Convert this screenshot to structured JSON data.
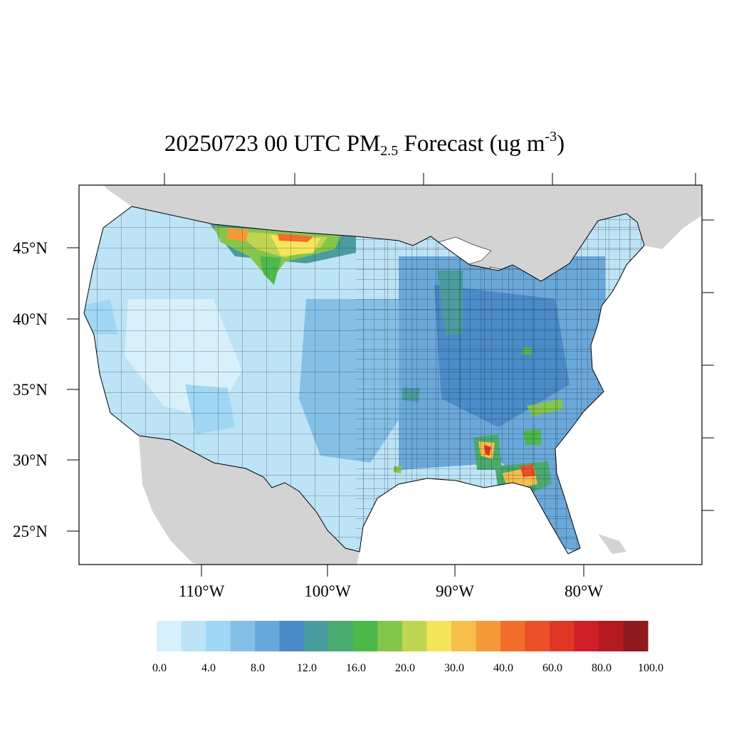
{
  "title": {
    "prefix": "20250723 00 UTC PM",
    "subscript": "2.5",
    "middle": " Forecast (ug m",
    "superscript": "-3",
    "suffix": ")"
  },
  "axes": {
    "lat_labels": [
      "45°N",
      "40°N",
      "35°N",
      "30°N",
      "25°N"
    ],
    "lon_labels": [
      "110°W",
      "100°W",
      "90°W",
      "80°W"
    ]
  },
  "colorbar": {
    "colors": [
      "#d8f0fa",
      "#bde3f6",
      "#9fd7f4",
      "#84c0e6",
      "#6aa8da",
      "#4a8bc8",
      "#4a9c9e",
      "#4aab6e",
      "#4cb94a",
      "#84c54c",
      "#c0d551",
      "#f6e55b",
      "#f6be4a",
      "#f59a3a",
      "#f26e2a",
      "#ea5128",
      "#de3726",
      "#d01e28",
      "#b51a23",
      "#8f1a1e"
    ],
    "labels": [
      "0.0",
      "4.0",
      "8.0",
      "12.0",
      "16.0",
      "20.0",
      "30.0",
      "40.0",
      "60.0",
      "80.0",
      "100.0"
    ]
  }
}
